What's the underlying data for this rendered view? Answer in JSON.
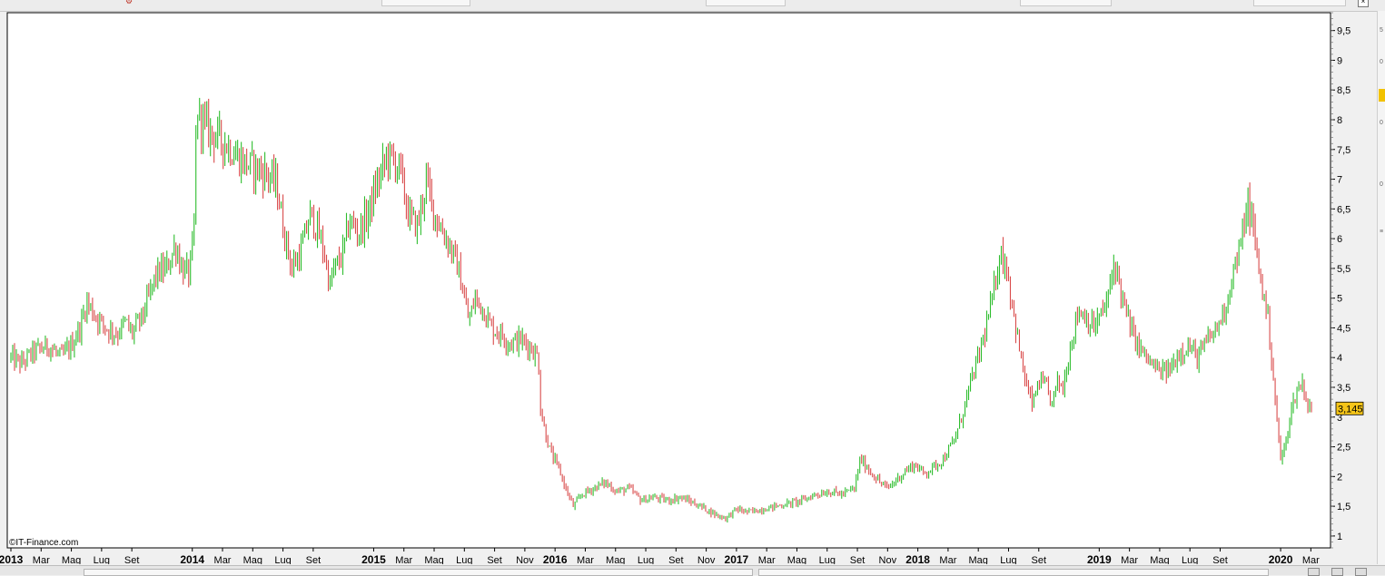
{
  "chart_data": {
    "type": "line",
    "title": "",
    "xlabel": "",
    "ylabel": "",
    "ylim": [
      0.8,
      9.8
    ],
    "grid": false,
    "y_ticks": [
      "1",
      "1,5",
      "2",
      "2,5",
      "3",
      "3,5",
      "4",
      "4,5",
      "5",
      "5,5",
      "6",
      "6,5",
      "7",
      "7,5",
      "8",
      "8,5",
      "9",
      "9,5"
    ],
    "x_ticks": [
      {
        "label": "2013",
        "year": true,
        "t": 0
      },
      {
        "label": "Mar",
        "year": false,
        "t": 2
      },
      {
        "label": "Mag",
        "year": false,
        "t": 4
      },
      {
        "label": "Lug",
        "year": false,
        "t": 6
      },
      {
        "label": "Set",
        "year": false,
        "t": 8
      },
      {
        "label": "2014",
        "year": true,
        "t": 12
      },
      {
        "label": "Mar",
        "year": false,
        "t": 14
      },
      {
        "label": "Mag",
        "year": false,
        "t": 16
      },
      {
        "label": "Lug",
        "year": false,
        "t": 18
      },
      {
        "label": "Set",
        "year": false,
        "t": 20
      },
      {
        "label": "2015",
        "year": true,
        "t": 24
      },
      {
        "label": "Mar",
        "year": false,
        "t": 26
      },
      {
        "label": "Mag",
        "year": false,
        "t": 28
      },
      {
        "label": "Lug",
        "year": false,
        "t": 30
      },
      {
        "label": "Set",
        "year": false,
        "t": 32
      },
      {
        "label": "Nov",
        "year": false,
        "t": 34
      },
      {
        "label": "2016",
        "year": true,
        "t": 36
      },
      {
        "label": "Mar",
        "year": false,
        "t": 38
      },
      {
        "label": "Mag",
        "year": false,
        "t": 40
      },
      {
        "label": "Lug",
        "year": false,
        "t": 42
      },
      {
        "label": "Set",
        "year": false,
        "t": 44
      },
      {
        "label": "Nov",
        "year": false,
        "t": 46
      },
      {
        "label": "2017",
        "year": true,
        "t": 48
      },
      {
        "label": "Mar",
        "year": false,
        "t": 50
      },
      {
        "label": "Mag",
        "year": false,
        "t": 52
      },
      {
        "label": "Lug",
        "year": false,
        "t": 54
      },
      {
        "label": "Set",
        "year": false,
        "t": 56
      },
      {
        "label": "Nov",
        "year": false,
        "t": 58
      },
      {
        "label": "2018",
        "year": true,
        "t": 60
      },
      {
        "label": "Mar",
        "year": false,
        "t": 62
      },
      {
        "label": "Mag",
        "year": false,
        "t": 64
      },
      {
        "label": "Lug",
        "year": false,
        "t": 66
      },
      {
        "label": "Set",
        "year": false,
        "t": 68
      },
      {
        "label": "2019",
        "year": true,
        "t": 72
      },
      {
        "label": "Mar",
        "year": false,
        "t": 74
      },
      {
        "label": "Mag",
        "year": false,
        "t": 76
      },
      {
        "label": "Lug",
        "year": false,
        "t": 78
      },
      {
        "label": "Set",
        "year": false,
        "t": 80
      },
      {
        "label": "2020",
        "year": true,
        "t": 84
      },
      {
        "label": "Mar",
        "year": false,
        "t": 86
      }
    ],
    "series": [
      {
        "values": [
          [
            0,
            4.0
          ],
          [
            0.7,
            3.9
          ],
          [
            1.5,
            4.1
          ],
          [
            2.5,
            4.2
          ],
          [
            3.3,
            4.0
          ],
          [
            4.0,
            4.2
          ],
          [
            4.7,
            4.6
          ],
          [
            5.0,
            4.95
          ],
          [
            5.6,
            4.7
          ],
          [
            6.3,
            4.5
          ],
          [
            7.0,
            4.4
          ],
          [
            7.6,
            4.6
          ],
          [
            8.0,
            4.4
          ],
          [
            8.7,
            4.7
          ],
          [
            9.1,
            5.0
          ],
          [
            9.6,
            5.4
          ],
          [
            10.3,
            5.5
          ],
          [
            10.9,
            5.9
          ],
          [
            11.3,
            5.5
          ],
          [
            11.8,
            5.4
          ],
          [
            12.1,
            6.0
          ],
          [
            12.3,
            8.3
          ],
          [
            12.5,
            8.0
          ],
          [
            13.2,
            7.8
          ],
          [
            14.2,
            7.6
          ],
          [
            15.3,
            7.3
          ],
          [
            16.1,
            7.2
          ],
          [
            16.9,
            7.1
          ],
          [
            17.6,
            6.9
          ],
          [
            18.0,
            6.2
          ],
          [
            18.6,
            5.5
          ],
          [
            19.2,
            5.8
          ],
          [
            19.8,
            6.4
          ],
          [
            20.2,
            6.2
          ],
          [
            20.7,
            5.8
          ],
          [
            21.1,
            5.2
          ],
          [
            21.4,
            5.5
          ],
          [
            21.9,
            5.7
          ],
          [
            22.4,
            6.3
          ],
          [
            23.0,
            6.1
          ],
          [
            23.6,
            6.4
          ],
          [
            24.2,
            6.9
          ],
          [
            24.9,
            7.4
          ],
          [
            25.7,
            7.2
          ],
          [
            26.3,
            6.4
          ],
          [
            26.9,
            6.2
          ],
          [
            27.5,
            7.0
          ],
          [
            27.9,
            6.5
          ],
          [
            28.4,
            6.2
          ],
          [
            29.0,
            5.9
          ],
          [
            29.6,
            5.5
          ],
          [
            30.0,
            5.0
          ],
          [
            30.3,
            4.6
          ],
          [
            30.7,
            5.0
          ],
          [
            31.3,
            4.8
          ],
          [
            31.8,
            4.5
          ],
          [
            32.4,
            4.4
          ],
          [
            33.0,
            4.25
          ],
          [
            33.7,
            4.3
          ],
          [
            34.3,
            4.2
          ],
          [
            34.9,
            4.0
          ],
          [
            35.0,
            3.2
          ],
          [
            35.3,
            2.8
          ],
          [
            35.7,
            2.4
          ],
          [
            36.3,
            2.1
          ],
          [
            36.7,
            1.8
          ],
          [
            37.2,
            1.5
          ],
          [
            37.8,
            1.7
          ],
          [
            38.5,
            1.8
          ],
          [
            39.3,
            1.9
          ],
          [
            40.1,
            1.75
          ],
          [
            40.9,
            1.8
          ],
          [
            41.7,
            1.6
          ],
          [
            42.5,
            1.65
          ],
          [
            43.4,
            1.6
          ],
          [
            44.3,
            1.65
          ],
          [
            45.2,
            1.55
          ],
          [
            46.0,
            1.45
          ],
          [
            46.7,
            1.35
          ],
          [
            47.3,
            1.3
          ],
          [
            48.0,
            1.45
          ],
          [
            48.8,
            1.4
          ],
          [
            49.7,
            1.45
          ],
          [
            50.6,
            1.5
          ],
          [
            51.5,
            1.55
          ],
          [
            52.4,
            1.6
          ],
          [
            53.2,
            1.7
          ],
          [
            54.1,
            1.75
          ],
          [
            55.0,
            1.7
          ],
          [
            55.8,
            1.8
          ],
          [
            56.2,
            2.3
          ],
          [
            56.8,
            2.1
          ],
          [
            57.5,
            1.9
          ],
          [
            58.0,
            1.8
          ],
          [
            58.6,
            1.95
          ],
          [
            59.2,
            2.1
          ],
          [
            59.8,
            2.2
          ],
          [
            60.4,
            2.05
          ],
          [
            61.0,
            2.15
          ],
          [
            61.7,
            2.3
          ],
          [
            62.4,
            2.6
          ],
          [
            62.9,
            3.0
          ],
          [
            63.4,
            3.5
          ],
          [
            64.0,
            4.0
          ],
          [
            64.6,
            4.6
          ],
          [
            65.1,
            5.2
          ],
          [
            65.4,
            5.8
          ],
          [
            65.9,
            5.5
          ],
          [
            66.3,
            4.8
          ],
          [
            66.8,
            4.0
          ],
          [
            67.2,
            3.5
          ],
          [
            67.6,
            3.2
          ],
          [
            68.0,
            3.6
          ],
          [
            68.5,
            3.5
          ],
          [
            68.9,
            3.2
          ],
          [
            69.2,
            3.6
          ],
          [
            69.6,
            3.5
          ],
          [
            70.1,
            4.2
          ],
          [
            70.6,
            4.8
          ],
          [
            71.1,
            4.7
          ],
          [
            71.6,
            4.5
          ],
          [
            72.1,
            4.7
          ],
          [
            72.6,
            5.0
          ],
          [
            73.0,
            5.65
          ],
          [
            73.6,
            4.9
          ],
          [
            74.2,
            4.4
          ],
          [
            74.8,
            4.1
          ],
          [
            75.4,
            3.9
          ],
          [
            76.0,
            3.75
          ],
          [
            76.7,
            3.8
          ],
          [
            77.3,
            4.1
          ],
          [
            77.9,
            4.2
          ],
          [
            78.5,
            4.0
          ],
          [
            79.2,
            4.3
          ],
          [
            79.8,
            4.5
          ],
          [
            80.4,
            4.9
          ],
          [
            80.9,
            5.5
          ],
          [
            81.3,
            5.8
          ],
          [
            81.8,
            6.6
          ],
          [
            82.1,
            6.3
          ],
          [
            82.5,
            5.6
          ],
          [
            82.9,
            5.0
          ],
          [
            83.2,
            4.6
          ],
          [
            83.5,
            3.7
          ],
          [
            83.8,
            2.8
          ],
          [
            84.0,
            2.3
          ],
          [
            84.3,
            2.5
          ],
          [
            84.6,
            3.0
          ],
          [
            85.0,
            3.4
          ],
          [
            85.4,
            3.6
          ],
          [
            85.8,
            3.2
          ],
          [
            86.1,
            3.145
          ]
        ]
      }
    ],
    "last_price": "3,145",
    "up_color": "#2ebd2e",
    "down_color": "#d94b4b"
  },
  "watermark": "IT-Finance.com",
  "colors": {
    "last_price_bg": "#f5c518",
    "panel_bg": "#ffffff",
    "window_bg": "#f0f0f0"
  }
}
